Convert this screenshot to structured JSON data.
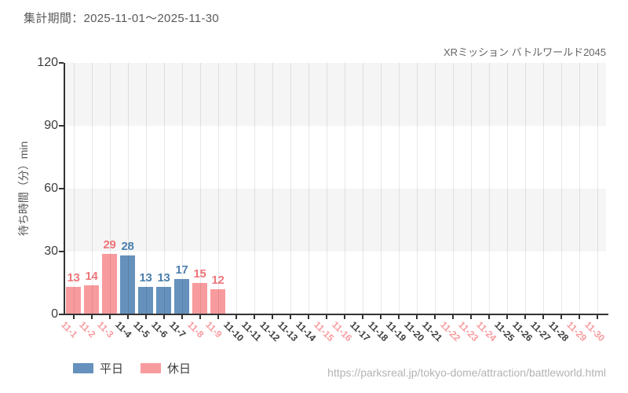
{
  "header": {
    "title": "集計期間：2025-11-01～2025-11-30",
    "attraction": "XRミッション バトルワールド2045"
  },
  "footer": {
    "url": "https://parksreal.jp/tokyo-dome/attraction/battleworld.html"
  },
  "colors": {
    "weekday_bar": "#6591bc",
    "holiday_bar": "#f89b9e",
    "weekday_value_text": "#4d80ae",
    "holiday_value_text": "#ee767b",
    "weekday_tick_text": "#3d3d3d",
    "holiday_tick_text": "#f89b9e",
    "axis": "#333333",
    "band_gray": "#f5f5f5",
    "gridline": "rgba(0,0,0,0.09)"
  },
  "chart_data": {
    "type": "bar",
    "title": "集計期間：2025-11-01～2025-11-30",
    "subtitle": "XRミッション バトルワールド2045",
    "xlabel": "",
    "ylabel": "待ち時間（分）min",
    "ylim": [
      0,
      120
    ],
    "yticks": [
      0,
      30,
      60,
      90,
      120
    ],
    "grid": true,
    "legend_position": "bottom-left",
    "categories": [
      "11-1",
      "11-2",
      "11-3",
      "11-4",
      "11-5",
      "11-6",
      "11-7",
      "11-8",
      "11-9",
      "11-10",
      "11-11",
      "11-12",
      "11-13",
      "11-14",
      "11-15",
      "11-16",
      "11-17",
      "11-18",
      "11-19",
      "11-20",
      "11-21",
      "11-22",
      "11-23",
      "11-24",
      "11-25",
      "11-26",
      "11-27",
      "11-28",
      "11-29",
      "11-30"
    ],
    "holiday_category_indices": [
      0,
      1,
      2,
      7,
      8,
      14,
      15,
      21,
      22,
      23,
      28,
      29
    ],
    "series": [
      {
        "name": "平日",
        "values": [
          null,
          null,
          null,
          28,
          13,
          13,
          17,
          null,
          null,
          null,
          null,
          null,
          null,
          null,
          null,
          null,
          null,
          null,
          null,
          null,
          null,
          null,
          null,
          null,
          null,
          null,
          null,
          null,
          null,
          null
        ]
      },
      {
        "name": "休日",
        "values": [
          13,
          14,
          29,
          null,
          null,
          null,
          null,
          15,
          12,
          null,
          null,
          null,
          null,
          null,
          null,
          null,
          null,
          null,
          null,
          null,
          null,
          null,
          null,
          null,
          null,
          null,
          null,
          null,
          null,
          null
        ]
      }
    ]
  }
}
